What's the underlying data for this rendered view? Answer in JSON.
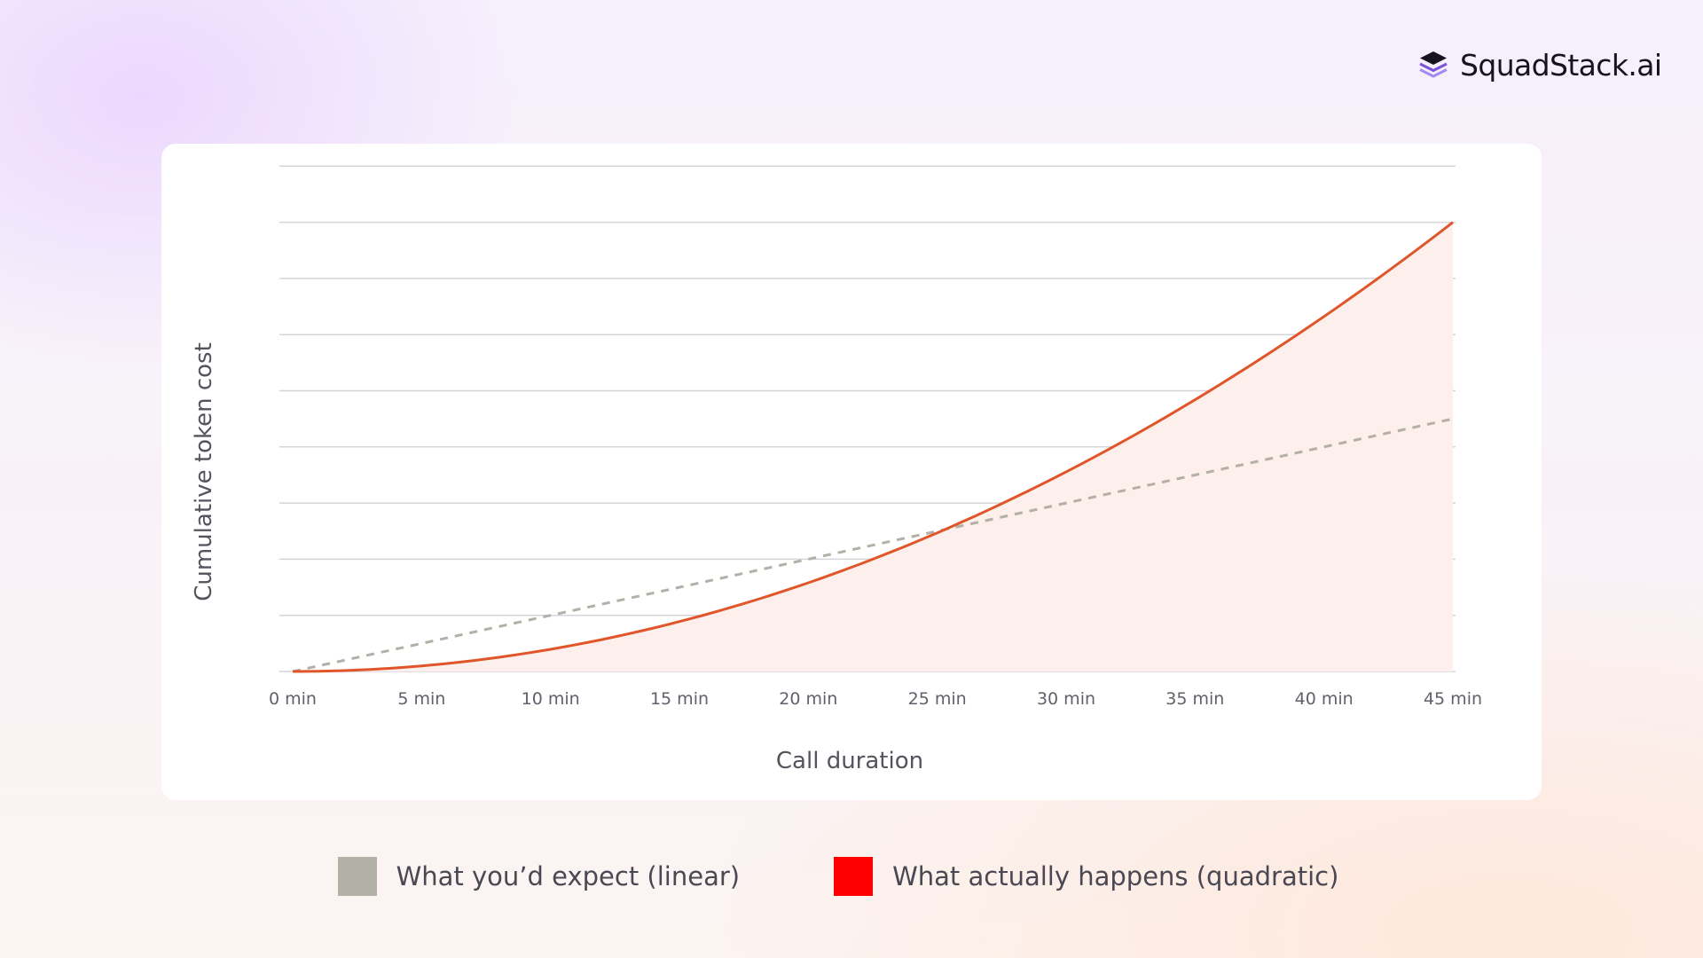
{
  "brand": {
    "name": "SquadStack.ai",
    "icon": "stacked-layers-icon",
    "icon_color": "#6b46c9"
  },
  "chart_data": {
    "type": "line",
    "title": "",
    "xlabel": "Call duration",
    "ylabel": "Cumulative token cost",
    "x_unit": "min",
    "xlim": [
      0,
      45
    ],
    "ylim": [
      0,
      9
    ],
    "grid": true,
    "y_tick_labels": false,
    "x_ticks": [
      {
        "value": 0,
        "label": "0 min"
      },
      {
        "value": 5,
        "label": "5 min"
      },
      {
        "value": 10,
        "label": "10 min"
      },
      {
        "value": 15,
        "label": "15 min"
      },
      {
        "value": 20,
        "label": "20 min"
      },
      {
        "value": 25,
        "label": "25 min"
      },
      {
        "value": 30,
        "label": "30 min"
      },
      {
        "value": 35,
        "label": "35 min"
      },
      {
        "value": 40,
        "label": "40 min"
      },
      {
        "value": 45,
        "label": "45 min"
      }
    ],
    "y_grid": [
      0,
      1,
      2,
      3,
      4,
      5,
      6,
      7,
      8,
      9
    ],
    "x": [
      0,
      5,
      10,
      15,
      20,
      25,
      30,
      35,
      40,
      45
    ],
    "legend_placement": "bottom",
    "series": [
      {
        "name": "What you’d expect (linear)",
        "style": "dashed",
        "color": "#b3b0a8",
        "swatch_color": "#b3b0a8",
        "values": [
          0,
          0.5,
          1.0,
          1.5,
          2.0,
          2.5,
          3.0,
          3.5,
          4.0,
          4.5
        ]
      },
      {
        "name": "What actually happens (quadratic)",
        "style": "solid",
        "fill": true,
        "color": "#e0562a",
        "fill_color": "#fdf0ec",
        "swatch_color": "#ff0000",
        "values": [
          0,
          0.1,
          0.4,
          0.9,
          1.6,
          2.5,
          3.6,
          4.9,
          6.4,
          8.0
        ]
      }
    ]
  }
}
